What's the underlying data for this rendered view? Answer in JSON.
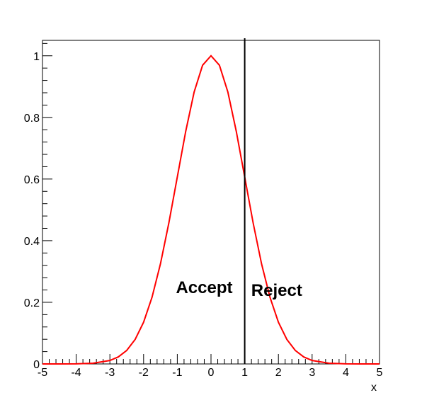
{
  "chart_data": {
    "type": "line",
    "title": "",
    "xlabel": "x",
    "ylabel": "",
    "xlim": [
      -5,
      5
    ],
    "ylim": [
      0,
      1.05
    ],
    "grid": false,
    "x_ticks": [
      -5,
      -4,
      -3,
      -2,
      -1,
      0,
      1,
      2,
      3,
      4,
      5
    ],
    "x_tick_labels": [
      "-5",
      "-4",
      "-3",
      "-2",
      "-1",
      "0",
      "1",
      "2",
      "3",
      "4",
      "5"
    ],
    "y_ticks": [
      0,
      0.2,
      0.4,
      0.6,
      0.8,
      1
    ],
    "y_tick_labels": [
      "0",
      "0.2",
      "0.4",
      "0.6",
      "0.8",
      "1"
    ],
    "series": [
      {
        "function": "exp(-x^2/2)",
        "color": "#ff0000",
        "x": [
          -5,
          -4.5,
          -4,
          -3.5,
          -3,
          -2.75,
          -2.5,
          -2.25,
          -2,
          -1.75,
          -1.5,
          -1.25,
          -1,
          -0.75,
          -0.5,
          -0.25,
          0,
          0.25,
          0.5,
          0.75,
          1,
          1.25,
          1.5,
          1.75,
          2,
          2.25,
          2.5,
          2.75,
          3,
          3.5,
          4,
          4.5,
          5
        ],
        "y": [
          3.7e-06,
          4e-05,
          0.00034,
          0.0022,
          0.0111,
          0.0228,
          0.0439,
          0.0796,
          0.1353,
          0.2163,
          0.3247,
          0.4578,
          0.6065,
          0.7548,
          0.8825,
          0.9692,
          1.0,
          0.9692,
          0.8825,
          0.7548,
          0.6065,
          0.4578,
          0.3247,
          0.2163,
          0.1353,
          0.0796,
          0.0439,
          0.0228,
          0.0111,
          0.0022,
          0.00034,
          4e-05,
          3.7e-06
        ]
      }
    ],
    "cut_line": {
      "x": 1,
      "color": "#000000"
    },
    "annotations": [
      {
        "text": "Accept",
        "x": -0.2,
        "y": 0.23
      },
      {
        "text": "Reject",
        "x": 1.95,
        "y": 0.22
      }
    ]
  }
}
